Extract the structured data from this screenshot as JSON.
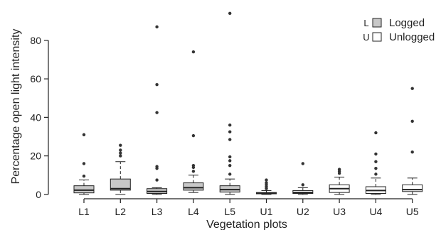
{
  "chart_data": {
    "type": "boxplot",
    "xlabel": "Vegetation plots",
    "ylabel": "Percentage open light intensity",
    "ylim": [
      -3,
      98
    ],
    "yticks": [
      0,
      20,
      40,
      60,
      80
    ],
    "grid": false,
    "legend_position": "top-right",
    "legend": [
      {
        "key": "L",
        "label": "Logged",
        "group": "logged"
      },
      {
        "key": "U",
        "label": "Unlogged",
        "group": "unlogged"
      }
    ],
    "colors": {
      "logged": "#c8c8c8",
      "unlogged": "#ffffff",
      "stroke": "#222222",
      "outlier": "#333333"
    },
    "boxes": [
      {
        "label": "L1",
        "group": "logged",
        "whisker_low": 0,
        "q1": 0.8,
        "median": 2.2,
        "q3": 4.5,
        "whisker_high": 7.5,
        "outliers": [
          9.5,
          16,
          31
        ]
      },
      {
        "label": "L2",
        "group": "logged",
        "whisker_low": 0,
        "q1": 2.2,
        "median": 3,
        "q3": 8,
        "whisker_high": 17,
        "outliers": [
          20,
          21.5,
          23,
          25.5
        ]
      },
      {
        "label": "L3",
        "group": "logged",
        "whisker_low": 0,
        "q1": 0.5,
        "median": 1.5,
        "q3": 3,
        "whisker_high": 3.5,
        "outliers": [
          7.5,
          13.5,
          14.5,
          42.5,
          57,
          87
        ]
      },
      {
        "label": "L4",
        "group": "logged",
        "whisker_low": 1,
        "q1": 2.2,
        "median": 3.5,
        "q3": 6,
        "whisker_high": 10,
        "outliers": [
          12,
          14,
          15,
          30.5,
          74
        ]
      },
      {
        "label": "L5",
        "group": "logged",
        "whisker_low": 0,
        "q1": 1.2,
        "median": 2.5,
        "q3": 4.5,
        "whisker_high": 8,
        "outliers": [
          10.5,
          15,
          17.5,
          19.5,
          28.5,
          32.5,
          36,
          94
        ]
      },
      {
        "label": "U1",
        "group": "unlogged",
        "whisker_low": 0,
        "q1": 0.3,
        "median": 0.6,
        "q3": 1,
        "whisker_high": 2,
        "outliers": [
          3,
          4,
          5,
          6,
          7.5
        ]
      },
      {
        "label": "U2",
        "group": "unlogged",
        "whisker_low": 0,
        "q1": 0.5,
        "median": 1,
        "q3": 2,
        "whisker_high": 3.5,
        "outliers": [
          5,
          16
        ]
      },
      {
        "label": "U3",
        "group": "unlogged",
        "whisker_low": 0,
        "q1": 1,
        "median": 3,
        "q3": 5,
        "whisker_high": 9,
        "outliers": [
          11,
          12,
          13
        ]
      },
      {
        "label": "U4",
        "group": "unlogged",
        "whisker_low": 0,
        "q1": 0.5,
        "median": 2,
        "q3": 4,
        "whisker_high": 8.5,
        "outliers": [
          10.5,
          13.5,
          17,
          21,
          32
        ]
      },
      {
        "label": "U5",
        "group": "unlogged",
        "whisker_low": 0,
        "q1": 1.5,
        "median": 2.5,
        "q3": 5,
        "whisker_high": 8.5,
        "outliers": [
          22,
          38,
          55
        ]
      }
    ]
  }
}
